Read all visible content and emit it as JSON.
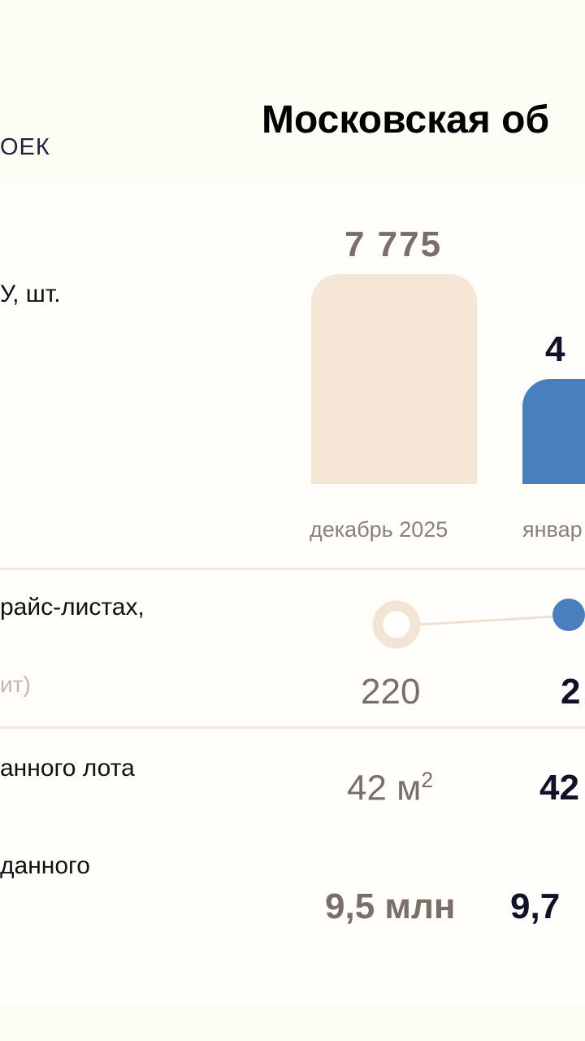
{
  "header": {
    "logo_text": "ОЕК",
    "title": "Московская об"
  },
  "rows": {
    "row1_label": "У, шт.",
    "row2_label": "райс-листах,",
    "row2_sub": "ит)",
    "row3_label": "анного лота",
    "row4_label": "данного"
  },
  "chart_data": {
    "type": "bar",
    "categories": [
      "декабрь 2025",
      "январ"
    ],
    "values": [
      7775,
      null
    ],
    "value_labels": [
      "7 775",
      "4"
    ],
    "colors": [
      "#f5e6d6",
      "#4a7fbf"
    ]
  },
  "metric2": {
    "type": "line",
    "values_labels": [
      "220",
      "2"
    ],
    "colors": [
      "#f3e4d5",
      "#4a7fbf"
    ]
  },
  "metric3": {
    "old": "42 м",
    "old_sup": "2",
    "new": "42"
  },
  "metric4": {
    "old": "9,5 млн",
    "new": "9,7"
  }
}
